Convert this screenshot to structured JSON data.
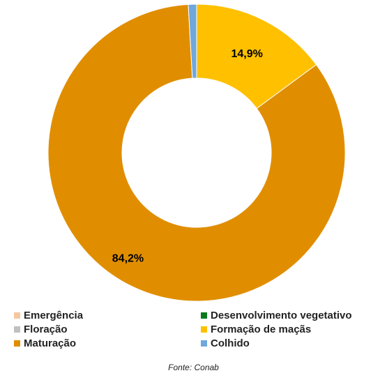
{
  "chart_data": {
    "type": "pie",
    "donut": true,
    "slices": [
      {
        "label": "Emergência",
        "value": 0.0,
        "color": "#F4C7A1"
      },
      {
        "label": "Desenvolvimento vegetativo",
        "value": 0.0,
        "color": "#0B7A1E"
      },
      {
        "label": "Floração",
        "value": 0.0,
        "color": "#C0C0C0"
      },
      {
        "label": "Formação de maçãs",
        "value": 14.9,
        "color": "#FFC000",
        "data_label": "14,9%"
      },
      {
        "label": "Maturação",
        "value": 84.2,
        "color": "#E08E00",
        "data_label": "84,2%"
      },
      {
        "label": "Colhido",
        "value": 0.9,
        "color": "#6FA8DC"
      }
    ],
    "legend": {
      "position": "bottom",
      "columns": 2
    },
    "source": "Fonte: Conab"
  }
}
